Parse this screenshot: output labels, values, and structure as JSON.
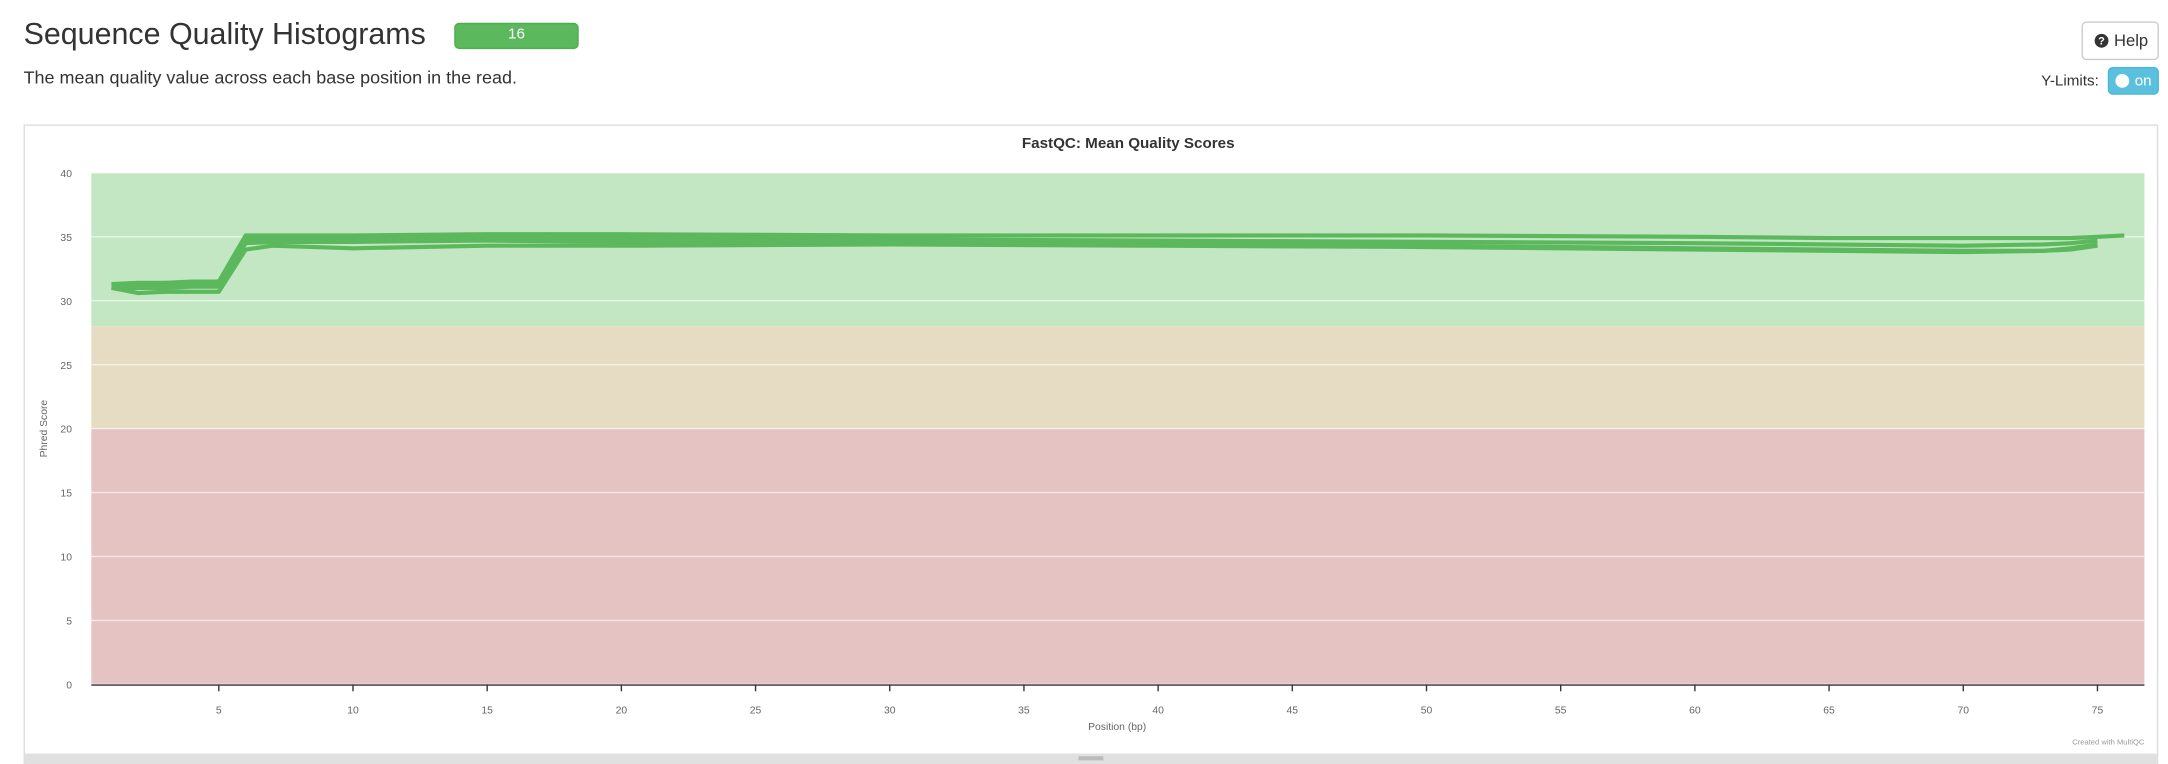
{
  "header": {
    "title": "Sequence Quality Histograms",
    "badge": "16",
    "description": "The mean quality value across each base position in the read.",
    "help": "Help",
    "ylimits_label": "Y-Limits:",
    "ylimits_toggle": "on"
  },
  "chart_data": {
    "type": "line",
    "title": "FastQC: Mean Quality Scores",
    "x_label": "Position (bp)",
    "y_label": "Phred Score",
    "credit": "Created with MultiQC",
    "x": [
      1,
      2,
      3,
      4,
      5,
      6,
      7,
      10,
      15,
      20,
      30,
      40,
      50,
      60,
      65,
      70,
      73,
      74,
      75,
      76
    ],
    "series": [
      {
        "color": "#5cb85c",
        "values": [
          31.3,
          31.4,
          31.4,
          31.5,
          31.5,
          35.1,
          35.1,
          35.1,
          35.2,
          35.2,
          35.1,
          35.1,
          35.1,
          35.0,
          34.9,
          34.9,
          34.9,
          34.9,
          35.0,
          35.1
        ]
      },
      {
        "color": "#5cb85c",
        "values": [
          31.2,
          31.2,
          31.3,
          31.3,
          31.3,
          34.8,
          34.9,
          34.9,
          35.0,
          34.9,
          34.8,
          34.7,
          34.6,
          34.5,
          34.4,
          34.3,
          34.4,
          34.5,
          34.7,
          null
        ]
      },
      {
        "color": "#5cb85c",
        "values": [
          31.0,
          31.0,
          31.0,
          31.1,
          31.1,
          34.5,
          34.6,
          34.6,
          34.7,
          34.6,
          34.5,
          34.4,
          34.3,
          34.1,
          34.0,
          33.9,
          33.9,
          34.1,
          34.4,
          null
        ]
      },
      {
        "color": "#5cb85c",
        "values": [
          31.0,
          30.6,
          30.7,
          30.7,
          30.7,
          34.0,
          34.3,
          34.1,
          34.3,
          34.3,
          34.4,
          34.3,
          34.2,
          34.0,
          33.9,
          33.8,
          33.9,
          34.0,
          34.3,
          null
        ]
      }
    ],
    "bands": [
      {
        "from": 28,
        "to": 40,
        "color": "#c3e6c3"
      },
      {
        "from": 20,
        "to": 28,
        "color": "#e6dcc3"
      },
      {
        "from": 0,
        "to": 20,
        "color": "#e6c3c3"
      }
    ],
    "xlim": [
      0.25,
      76.75
    ],
    "xticks": [
      5,
      10,
      15,
      20,
      25,
      30,
      35,
      40,
      45,
      50,
      55,
      60,
      65,
      70,
      75
    ],
    "ylim": [
      0,
      40
    ],
    "yticks": [
      0,
      5,
      10,
      15,
      20,
      25,
      30,
      35,
      40
    ],
    "grid": true
  }
}
